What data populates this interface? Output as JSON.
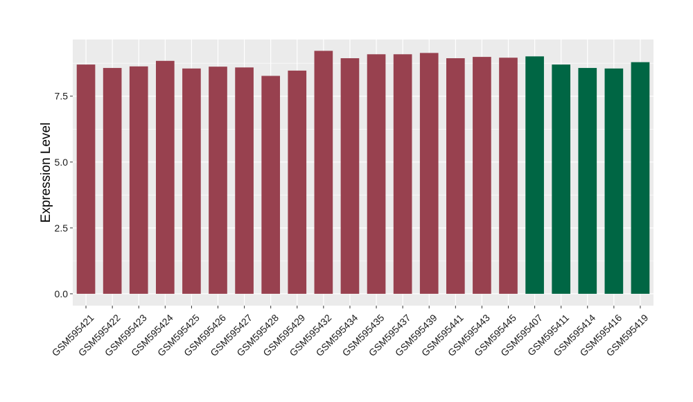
{
  "chart_data": {
    "type": "bar",
    "title": "",
    "xlabel": "",
    "ylabel": "Expression Level",
    "ylim": [
      -0.45,
      9.65
    ],
    "yticks": [
      0.0,
      2.5,
      5.0,
      7.5
    ],
    "ytick_labels": [
      "0.0",
      "2.5",
      "5.0",
      "7.5"
    ],
    "grid": true,
    "legend": "none",
    "categories": [
      "GSM595421",
      "GSM595422",
      "GSM595423",
      "GSM595424",
      "GSM595425",
      "GSM595426",
      "GSM595427",
      "GSM595428",
      "GSM595429",
      "GSM595432",
      "GSM595434",
      "GSM595435",
      "GSM595437",
      "GSM595439",
      "GSM595441",
      "GSM595443",
      "GSM595445",
      "GSM595407",
      "GSM595411",
      "GSM595414",
      "GSM595416",
      "GSM595419"
    ],
    "values": [
      8.7,
      8.57,
      8.63,
      8.84,
      8.55,
      8.62,
      8.59,
      8.27,
      8.47,
      9.22,
      8.94,
      9.09,
      9.09,
      9.14,
      8.94,
      8.99,
      8.96,
      9.01,
      8.7,
      8.57,
      8.55,
      8.79
    ],
    "bar_colors": [
      "#98414f",
      "#98414f",
      "#98414f",
      "#98414f",
      "#98414f",
      "#98414f",
      "#98414f",
      "#98414f",
      "#98414f",
      "#98414f",
      "#98414f",
      "#98414f",
      "#98414f",
      "#98414f",
      "#98414f",
      "#98414f",
      "#98414f",
      "#006644",
      "#006644",
      "#006644",
      "#006644",
      "#006644"
    ],
    "panel_background": "#ebebeb",
    "grid_color": "#ffffff"
  }
}
